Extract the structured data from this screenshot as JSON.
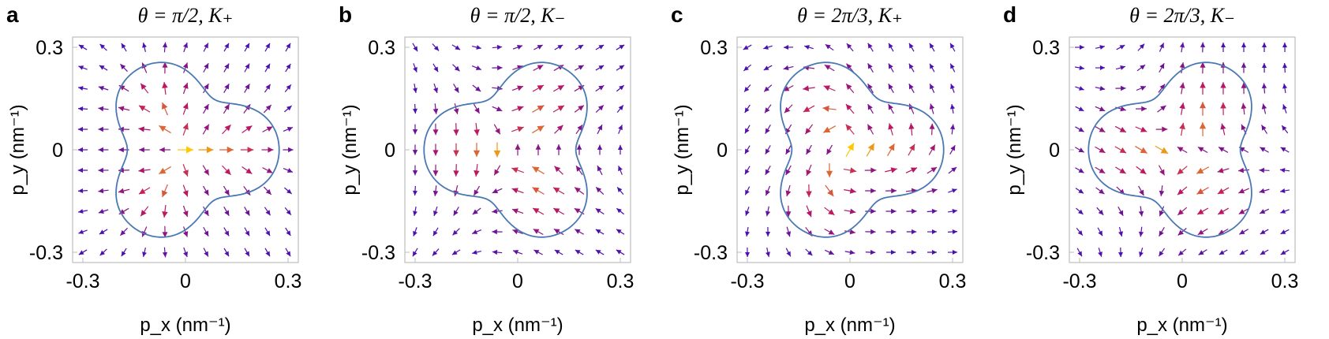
{
  "colors": {
    "contour": "#4a78b4",
    "arrow_low": "#4b0fb0",
    "arrow_mid": "#c0185e",
    "arrow_high": "#ffc800"
  },
  "chart_data": [
    {
      "type": "quiver",
      "panel": "a",
      "title": "θ = π/2,  K₊",
      "xlabel": "p_x (nm⁻¹)",
      "ylabel": "p_y (nm⁻¹)",
      "xlim": [
        -0.33,
        0.33
      ],
      "ylim": [
        -0.33,
        0.33
      ],
      "xticks": [
        "-0.3",
        "0",
        "0.3"
      ],
      "yticks": [
        "0.3",
        "0",
        "-0.3"
      ],
      "contour_shape": "rounded triangle, vertex pointing +x",
      "contour_vertex_angle_deg": 0,
      "field_winding": 1,
      "field_phase_deg": 0,
      "grid_spacing": 0.06
    },
    {
      "type": "quiver",
      "panel": "b",
      "title": "θ = π/2,  K₋",
      "xlabel": "p_x (nm⁻¹)",
      "ylabel": "p_y (nm⁻¹)",
      "xlim": [
        -0.33,
        0.33
      ],
      "ylim": [
        -0.33,
        0.33
      ],
      "xticks": [
        "-0.3",
        "0",
        "0.3"
      ],
      "yticks": [
        "0.3",
        "0",
        "-0.3"
      ],
      "contour_shape": "rounded triangle, vertex pointing -x",
      "contour_vertex_angle_deg": 180,
      "field_winding": -1,
      "field_phase_deg": 90,
      "grid_spacing": 0.06
    },
    {
      "type": "quiver",
      "panel": "c",
      "title": "θ = 2π/3,  K₊",
      "xlabel": "p_x (nm⁻¹)",
      "ylabel": "p_y (nm⁻¹)",
      "xlim": [
        -0.33,
        0.33
      ],
      "ylim": [
        -0.33,
        0.33
      ],
      "xticks": [
        "-0.3",
        "0",
        "0.3"
      ],
      "yticks": [
        "0.3",
        "0",
        "-0.3"
      ],
      "contour_shape": "rounded triangle, vertex pointing +x",
      "contour_vertex_angle_deg": 0,
      "field_winding": 1,
      "field_phase_deg": 60,
      "grid_spacing": 0.06
    },
    {
      "type": "quiver",
      "panel": "d",
      "title": "θ = 2π/3,  K₋",
      "xlabel": "p_x (nm⁻¹)",
      "ylabel": "p_y (nm⁻¹)",
      "xlim": [
        -0.33,
        0.33
      ],
      "ylim": [
        -0.33,
        0.33
      ],
      "xticks": [
        "-0.3",
        "0",
        "0.3"
      ],
      "yticks": [
        "0.3",
        "0",
        "-0.3"
      ],
      "contour_shape": "rounded triangle, vertex pointing -x",
      "contour_vertex_angle_deg": 180,
      "field_winding": -1,
      "field_phase_deg": 150,
      "grid_spacing": 0.06
    }
  ]
}
